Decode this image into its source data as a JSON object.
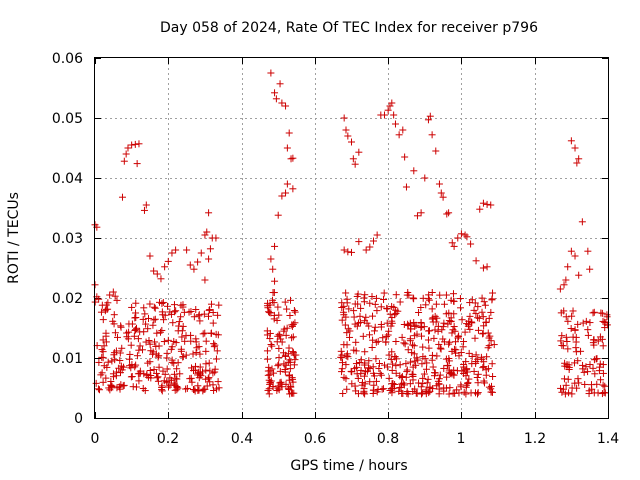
{
  "chart_data": {
    "type": "scatter",
    "title": "Day 058 of 2024, Rate Of TEC Index for receiver p796",
    "xlabel": "GPS time / hours",
    "ylabel": "ROTI / TECUs",
    "xlim": [
      0,
      1.4
    ],
    "ylim": [
      0,
      0.06
    ],
    "x_ticks": [
      0,
      0.2,
      0.4,
      0.6,
      0.8,
      1,
      1.2,
      1.4
    ],
    "x_tick_labels": [
      "0",
      "0.2",
      "0.4",
      "0.6",
      "0.8",
      "1",
      "1.2",
      "1.4"
    ],
    "y_ticks": [
      0,
      0.01,
      0.02,
      0.03,
      0.04,
      0.05,
      0.06
    ],
    "y_tick_labels": [
      "0",
      "0.01",
      "0.02",
      "0.03",
      "0.04",
      "0.05",
      "0.06"
    ],
    "grid": true,
    "marker": "+",
    "color": "#cc0000",
    "series": [
      {
        "name": "ROTI",
        "points": [
          [
            0.0,
            0.0322
          ],
          [
            0.005,
            0.0318
          ],
          [
            0.0,
            0.0222
          ],
          [
            0.005,
            0.0202
          ],
          [
            0.01,
            0.0198
          ],
          [
            0.02,
            0.0188
          ],
          [
            0.03,
            0.0181
          ],
          [
            0.04,
            0.0205
          ],
          [
            0.05,
            0.021
          ],
          [
            0.055,
            0.0203
          ],
          [
            0.06,
            0.0196
          ],
          [
            0.075,
            0.0368
          ],
          [
            0.08,
            0.0428
          ],
          [
            0.085,
            0.044
          ],
          [
            0.09,
            0.045
          ],
          [
            0.1,
            0.0455
          ],
          [
            0.11,
            0.0456
          ],
          [
            0.115,
            0.0424
          ],
          [
            0.12,
            0.0457
          ],
          [
            0.135,
            0.0346
          ],
          [
            0.14,
            0.0355
          ],
          [
            0.15,
            0.027
          ],
          [
            0.16,
            0.0245
          ],
          [
            0.17,
            0.024
          ],
          [
            0.18,
            0.0232
          ],
          [
            0.19,
            0.0252
          ],
          [
            0.2,
            0.0261
          ],
          [
            0.21,
            0.0275
          ],
          [
            0.22,
            0.028
          ],
          [
            0.25,
            0.028
          ],
          [
            0.26,
            0.0255
          ],
          [
            0.27,
            0.0248
          ],
          [
            0.28,
            0.026
          ],
          [
            0.29,
            0.0275
          ],
          [
            0.3,
            0.0305
          ],
          [
            0.305,
            0.031
          ],
          [
            0.31,
            0.0342
          ],
          [
            0.315,
            0.0282
          ],
          [
            0.32,
            0.03
          ],
          [
            0.33,
            0.03
          ],
          [
            0.31,
            0.0265
          ],
          [
            0.3,
            0.023
          ],
          [
            0.48,
            0.0575
          ],
          [
            0.49,
            0.0542
          ],
          [
            0.495,
            0.0532
          ],
          [
            0.505,
            0.0557
          ],
          [
            0.51,
            0.0525
          ],
          [
            0.52,
            0.052
          ],
          [
            0.525,
            0.045
          ],
          [
            0.53,
            0.0475
          ],
          [
            0.535,
            0.0432
          ],
          [
            0.54,
            0.0433
          ],
          [
            0.5,
            0.0338
          ],
          [
            0.51,
            0.037
          ],
          [
            0.52,
            0.0375
          ],
          [
            0.525,
            0.039
          ],
          [
            0.54,
            0.0382
          ],
          [
            0.49,
            0.0286
          ],
          [
            0.48,
            0.0265
          ],
          [
            0.485,
            0.0248
          ],
          [
            0.49,
            0.0228
          ],
          [
            0.68,
            0.05
          ],
          [
            0.685,
            0.048
          ],
          [
            0.69,
            0.047
          ],
          [
            0.7,
            0.046
          ],
          [
            0.705,
            0.0432
          ],
          [
            0.71,
            0.0423
          ],
          [
            0.72,
            0.0443
          ],
          [
            0.68,
            0.028
          ],
          [
            0.69,
            0.0277
          ],
          [
            0.7,
            0.0276
          ],
          [
            0.72,
            0.0294
          ],
          [
            0.74,
            0.028
          ],
          [
            0.75,
            0.0285
          ],
          [
            0.76,
            0.0295
          ],
          [
            0.77,
            0.0305
          ],
          [
            0.78,
            0.0505
          ],
          [
            0.79,
            0.0505
          ],
          [
            0.8,
            0.0513
          ],
          [
            0.805,
            0.052
          ],
          [
            0.81,
            0.0525
          ],
          [
            0.815,
            0.0505
          ],
          [
            0.82,
            0.049
          ],
          [
            0.83,
            0.0472
          ],
          [
            0.84,
            0.048
          ],
          [
            0.845,
            0.0435
          ],
          [
            0.85,
            0.0385
          ],
          [
            0.87,
            0.0412
          ],
          [
            0.88,
            0.0337
          ],
          [
            0.89,
            0.0342
          ],
          [
            0.9,
            0.04
          ],
          [
            0.91,
            0.0497
          ],
          [
            0.915,
            0.0503
          ],
          [
            0.92,
            0.0472
          ],
          [
            0.93,
            0.0445
          ],
          [
            0.94,
            0.039
          ],
          [
            0.945,
            0.0375
          ],
          [
            0.95,
            0.0368
          ],
          [
            0.96,
            0.034
          ],
          [
            0.965,
            0.0342
          ],
          [
            0.975,
            0.0292
          ],
          [
            0.98,
            0.0286
          ],
          [
            0.99,
            0.03
          ],
          [
            1.0,
            0.0307
          ],
          [
            1.01,
            0.0305
          ],
          [
            1.015,
            0.0302
          ],
          [
            1.025,
            0.029
          ],
          [
            1.04,
            0.0262
          ],
          [
            1.05,
            0.0348
          ],
          [
            1.06,
            0.0358
          ],
          [
            1.07,
            0.0356
          ],
          [
            1.08,
            0.0355
          ],
          [
            1.07,
            0.0252
          ],
          [
            1.06,
            0.025
          ],
          [
            1.3,
            0.0462
          ],
          [
            1.31,
            0.045
          ],
          [
            1.315,
            0.0425
          ],
          [
            1.32,
            0.0432
          ],
          [
            1.33,
            0.0327
          ],
          [
            1.3,
            0.0278
          ],
          [
            1.31,
            0.027
          ],
          [
            1.29,
            0.0252
          ],
          [
            1.32,
            0.0238
          ],
          [
            1.345,
            0.0278
          ],
          [
            1.35,
            0.0248
          ],
          [
            1.28,
            0.0222
          ],
          [
            1.285,
            0.023
          ],
          [
            1.27,
            0.0215
          ]
        ]
      }
    ]
  },
  "clusters": [
    [
      0.0,
      0.34,
      0.0045,
      0.0195,
      300
    ],
    [
      0.47,
      0.55,
      0.004,
      0.021,
      110
    ],
    [
      0.67,
      1.09,
      0.004,
      0.021,
      460
    ],
    [
      1.27,
      1.4,
      0.004,
      0.018,
      100
    ]
  ]
}
